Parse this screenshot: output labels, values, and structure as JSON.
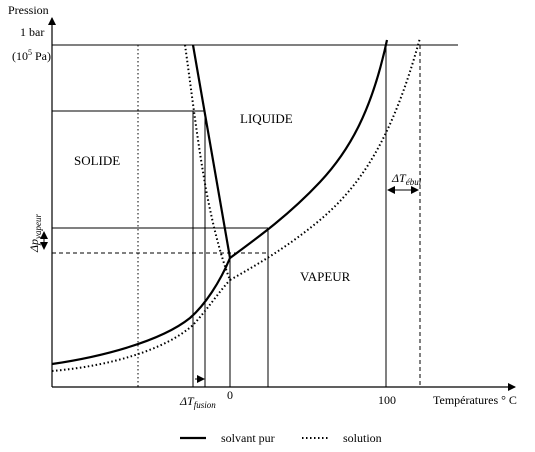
{
  "axes": {
    "y_title": "Pression",
    "y_tick_1bar": "1 bar",
    "y_tick_pa_prefix": "(10",
    "y_tick_pa_sup": "5",
    "y_tick_pa_suffix": " Pa)",
    "x_title": "Températures ° C",
    "x_tick_zero": "0",
    "x_tick_hundred": "100"
  },
  "regions": {
    "solid": "SOLIDE",
    "liquid": "LIQUIDE",
    "vapor": "VAPEUR"
  },
  "annotations": {
    "delta_p_symbol": "Δp",
    "delta_p_sub": "vapeur",
    "delta_t_fusion_symbol": "ΔT",
    "delta_t_fusion_sub": "fusion",
    "delta_t_ebul_symbol": "ΔT",
    "delta_t_ebul_sub": "ébul"
  },
  "legend": {
    "pure_solvent": "solvant pur",
    "solution": "solution"
  }
}
